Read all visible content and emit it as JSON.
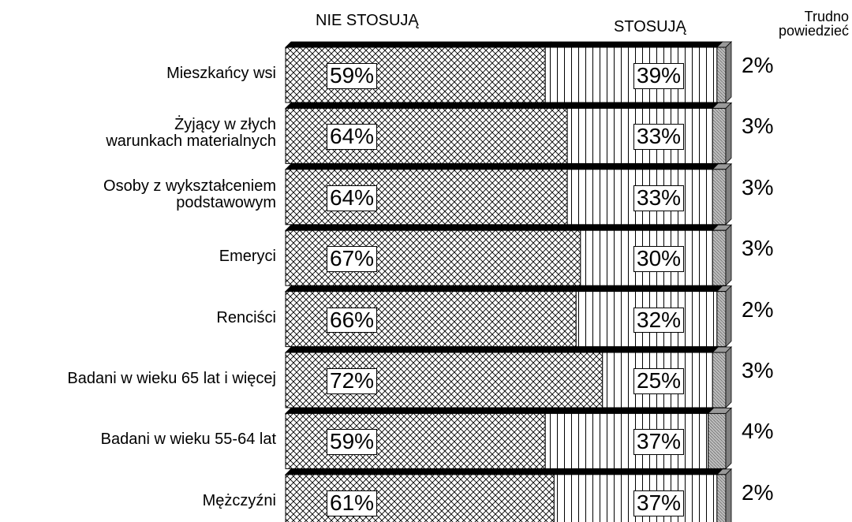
{
  "chart_data": {
    "type": "stacked-bar-horizontal",
    "categories": [
      "Mieszkańcy wsi",
      "Żyjący w złych\nwarunkach materialnych",
      "Osoby z wykształceniem\npodstawowym",
      "Emeryci",
      "Renciści",
      "Badani w wieku 65 lat i więcej",
      "Badani w wieku 55-64 lat",
      "Mężczyźni"
    ],
    "series": [
      {
        "name": "NIE STOSUJĄ",
        "values": [
          59,
          64,
          64,
          67,
          66,
          72,
          59,
          61
        ],
        "value_labels": [
          "59%",
          "64%",
          "64%",
          "67%",
          "66%",
          "72%",
          "59%",
          "61%"
        ]
      },
      {
        "name": "STOSUJĄ",
        "values": [
          39,
          33,
          33,
          30,
          32,
          25,
          37,
          37
        ],
        "value_labels": [
          "39%",
          "33%",
          "33%",
          "30%",
          "32%",
          "25%",
          "37%",
          "37%"
        ]
      },
      {
        "name": "Trudno\npowiedzieć",
        "values": [
          2,
          3,
          3,
          3,
          2,
          3,
          4,
          2
        ],
        "value_labels": [
          "2%",
          "3%",
          "3%",
          "3%",
          "2%",
          "3%",
          "4%",
          "2%"
        ]
      }
    ],
    "xlim": [
      0,
      100
    ]
  }
}
